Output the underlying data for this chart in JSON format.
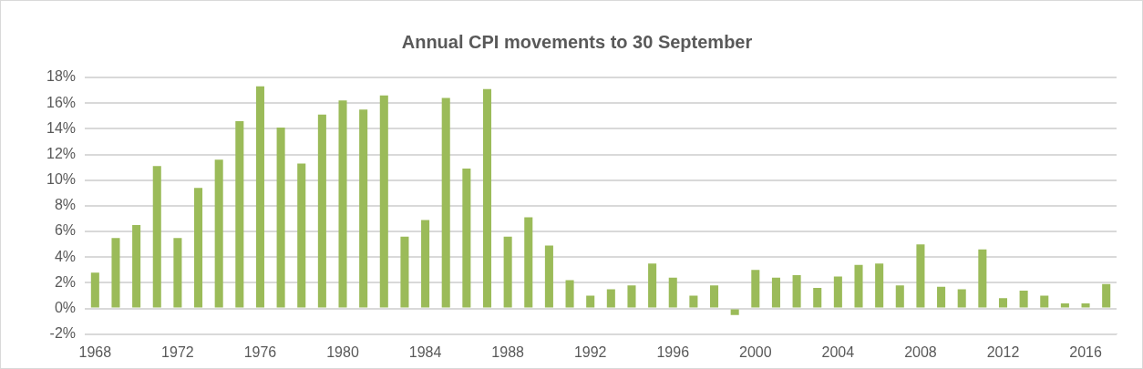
{
  "chart_data": {
    "type": "bar",
    "title": "Annual CPI movements to 30 September",
    "categories": [
      "1968",
      null,
      null,
      null,
      "1972",
      null,
      null,
      null,
      "1976",
      null,
      null,
      null,
      "1980",
      null,
      null,
      null,
      "1984",
      null,
      null,
      null,
      "1988",
      null,
      null,
      null,
      "1992",
      null,
      null,
      null,
      "1996",
      null,
      null,
      null,
      "2000",
      null,
      null,
      null,
      "2004",
      null,
      null,
      null,
      "2008",
      null,
      null,
      null,
      "2012",
      null,
      null,
      null,
      "2016",
      null
    ],
    "values": [
      2.8,
      5.5,
      6.5,
      11.1,
      5.5,
      9.4,
      11.6,
      14.6,
      17.3,
      14.1,
      11.3,
      15.1,
      16.2,
      15.5,
      16.6,
      5.6,
      6.9,
      16.4,
      10.9,
      17.1,
      5.6,
      7.1,
      4.9,
      2.2,
      1.0,
      1.5,
      1.8,
      3.5,
      2.4,
      1.0,
      1.8,
      -0.5,
      3.0,
      2.4,
      2.6,
      1.6,
      2.5,
      3.4,
      3.5,
      1.8,
      5.0,
      1.7,
      1.5,
      4.6,
      0.8,
      1.4,
      1.0,
      0.4,
      0.4,
      1.9
    ],
    "color": "#9bbb59",
    "ylim": [
      -2,
      18
    ],
    "yticks": [
      {
        "value": -2,
        "label": "-2%"
      },
      {
        "value": 0,
        "label": "0%"
      },
      {
        "value": 2,
        "label": "2%"
      },
      {
        "value": 4,
        "label": "4%"
      },
      {
        "value": 6,
        "label": "6%"
      },
      {
        "value": 8,
        "label": "8%"
      },
      {
        "value": 10,
        "label": "10%"
      },
      {
        "value": 12,
        "label": "12%"
      },
      {
        "value": 14,
        "label": "14%"
      },
      {
        "value": 16,
        "label": "16%"
      },
      {
        "value": 18,
        "label": "18%"
      }
    ],
    "grid": "y",
    "legend": false
  }
}
